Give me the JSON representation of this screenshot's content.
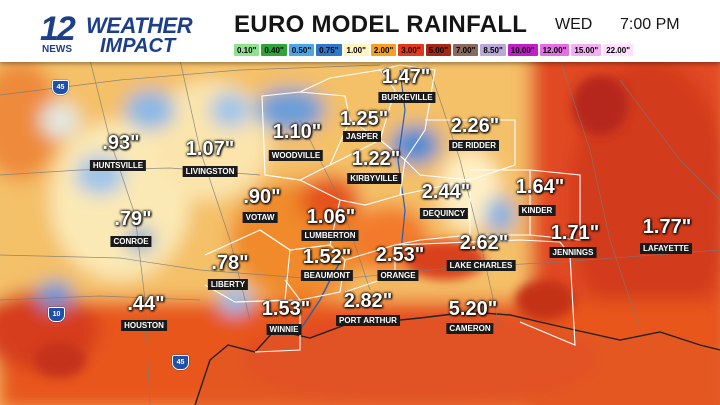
{
  "header": {
    "logo_number": "12",
    "logo_news": "NEWS",
    "logo_weather": "WEATHER",
    "logo_impact": "IMPACT",
    "title": "EURO MODEL RAINFALL",
    "day": "WED",
    "time": "7:00 PM"
  },
  "legend": [
    {
      "label": "0.10\"",
      "color": "#8fe08f"
    },
    {
      "label": "0.40\"",
      "color": "#2fa43a"
    },
    {
      "label": "0.50\"",
      "color": "#4aa6e8"
    },
    {
      "label": "0.75\"",
      "color": "#2f78c7"
    },
    {
      "label": "1.00\"",
      "color": "#fff4c2"
    },
    {
      "label": "2.00\"",
      "color": "#f5a020"
    },
    {
      "label": "3.00\"",
      "color": "#e03a1e"
    },
    {
      "label": "5.00\"",
      "color": "#a52814"
    },
    {
      "label": "7.00\"",
      "color": "#8a6a5e"
    },
    {
      "label": "8.50\"",
      "color": "#b9a8d8"
    },
    {
      "label": "10.00\"",
      "color": "#c01fc7"
    },
    {
      "label": "12.00\"",
      "color": "#e46ee4"
    },
    {
      "label": "15.00\"",
      "color": "#f2b0f2"
    },
    {
      "label": "22.00\"",
      "color": "#ffe0ff"
    }
  ],
  "locations": [
    {
      "amount": ".93\"",
      "city": "HUNTSVILLE"
    },
    {
      "amount": "1.07\"",
      "city": "LIVINGSTON"
    },
    {
      "amount": "1.10\"",
      "city": "WOODVILLE"
    },
    {
      "amount": "1.25\"",
      "city": "JASPER"
    },
    {
      "amount": "1.47\"",
      "city": "BURKEVILLE"
    },
    {
      "amount": "2.26\"",
      "city": "DE RIDDER"
    },
    {
      "amount": "1.22\"",
      "city": "KIRBYVILLE"
    },
    {
      "amount": ".79\"",
      "city": "CONROE"
    },
    {
      "amount": ".90\"",
      "city": "VOTAW"
    },
    {
      "amount": "1.06\"",
      "city": "LUMBERTON"
    },
    {
      "amount": "2.44\"",
      "city": "DEQUINCY"
    },
    {
      "amount": "1.64\"",
      "city": "KINDER"
    },
    {
      "amount": ".78\"",
      "city": "LIBERTY"
    },
    {
      "amount": "1.52\"",
      "city": "BEAUMONT"
    },
    {
      "amount": "2.53\"",
      "city": "ORANGE"
    },
    {
      "amount": "2.62\"",
      "city": "LAKE CHARLES"
    },
    {
      "amount": "1.71\"",
      "city": "JENNINGS"
    },
    {
      "amount": "1.77\"",
      "city": "LAFAYETTE"
    },
    {
      "amount": ".44\"",
      "city": "HOUSTON"
    },
    {
      "amount": "1.53\"",
      "city": "WINNIE"
    },
    {
      "amount": "2.82\"",
      "city": "PORT ARTHUR"
    },
    {
      "amount": "5.20\"",
      "city": "CAMERON"
    }
  ],
  "highways": [
    "45",
    "10",
    "45"
  ]
}
